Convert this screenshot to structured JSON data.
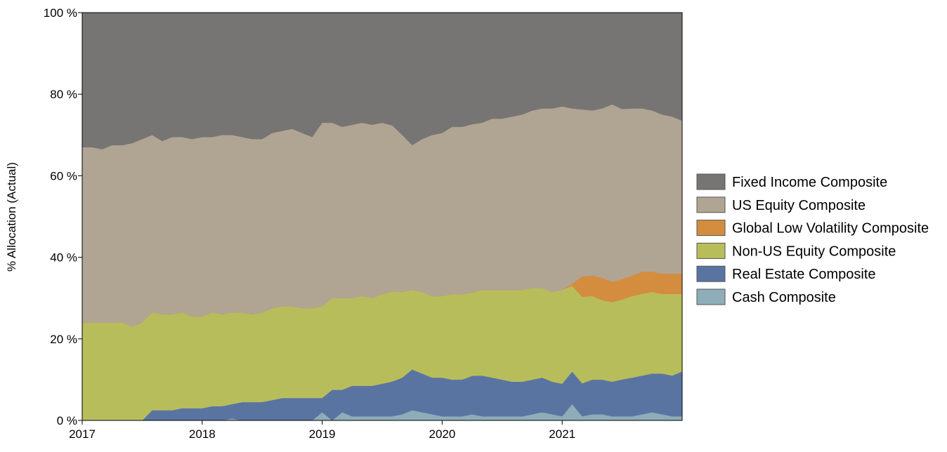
{
  "chart_data": {
    "type": "area",
    "stacked": true,
    "percent": true,
    "title": "",
    "xlabel": "",
    "ylabel": "% Allocation (Actual)",
    "ylim": [
      0,
      100
    ],
    "xlim": [
      2017.0,
      2022.0
    ],
    "x_ticks": [
      2017,
      2018,
      2019,
      2020,
      2021
    ],
    "y_ticks": [
      0,
      20,
      40,
      60,
      80,
      100
    ],
    "y_tick_suffix": " %",
    "grid": false,
    "legend_position": "right",
    "x": [
      2017.0,
      2017.083,
      2017.167,
      2017.25,
      2017.333,
      2017.417,
      2017.5,
      2017.583,
      2017.667,
      2017.75,
      2017.833,
      2017.917,
      2018.0,
      2018.083,
      2018.167,
      2018.25,
      2018.333,
      2018.417,
      2018.5,
      2018.583,
      2018.667,
      2018.75,
      2018.833,
      2018.917,
      2019.0,
      2019.083,
      2019.167,
      2019.25,
      2019.333,
      2019.417,
      2019.5,
      2019.583,
      2019.667,
      2019.75,
      2019.833,
      2019.917,
      2020.0,
      2020.083,
      2020.167,
      2020.25,
      2020.333,
      2020.417,
      2020.5,
      2020.583,
      2020.667,
      2020.75,
      2020.833,
      2020.917,
      2021.0,
      2021.083,
      2021.167,
      2021.25,
      2021.333,
      2021.417,
      2021.5,
      2021.583,
      2021.667,
      2021.75,
      2021.833,
      2021.917,
      2022.0
    ],
    "series": [
      {
        "name": "Cash Composite",
        "color": "#8fadb9",
        "values": [
          0,
          0,
          0,
          0,
          0,
          0,
          0,
          0,
          0,
          0,
          0,
          0,
          0,
          0,
          0,
          0.5,
          0,
          0,
          0,
          0,
          0,
          0,
          0,
          0,
          2,
          0,
          2,
          1,
          1,
          1,
          1,
          1,
          1.5,
          2.5,
          2,
          1.5,
          1,
          1,
          1,
          1.5,
          1,
          1,
          1,
          1,
          1,
          1.5,
          2,
          1.5,
          1,
          4,
          1,
          1.5,
          1.5,
          1,
          1,
          1,
          1.5,
          2,
          1.5,
          1,
          1
        ]
      },
      {
        "name": "Real Estate Composite",
        "color": "#5a74a2",
        "values": [
          0,
          0,
          0,
          0,
          0,
          0,
          0,
          2.5,
          2.5,
          2.5,
          3,
          3,
          3,
          3.5,
          3.5,
          3.5,
          4.5,
          4.5,
          4.5,
          5,
          5.5,
          5.5,
          5.5,
          5.5,
          3.5,
          7.5,
          5.5,
          7.5,
          7.5,
          7.5,
          8,
          8.5,
          9,
          10,
          9.5,
          9,
          9.5,
          9,
          9,
          9.5,
          10,
          9.5,
          9,
          8.5,
          8.5,
          8.5,
          8.5,
          8,
          8,
          8,
          8,
          8.5,
          8.5,
          8.5,
          9,
          9.5,
          9.5,
          9.5,
          10,
          10,
          11
        ]
      },
      {
        "name": "Non-US Equity Composite",
        "color": "#b8bd5c",
        "values": [
          24,
          24,
          24,
          24,
          24,
          23,
          24,
          24,
          23.5,
          23.5,
          23.5,
          22.5,
          22.5,
          23,
          22.5,
          22.5,
          22,
          21.5,
          22,
          22.5,
          22.5,
          22.5,
          22,
          22,
          22.5,
          22.5,
          22.5,
          21.5,
          22,
          21.5,
          22,
          22,
          21,
          19.5,
          20,
          20,
          20,
          21,
          21,
          20.5,
          21,
          21.5,
          22,
          22.5,
          22.5,
          22.5,
          22,
          22,
          23,
          21,
          21,
          20.5,
          19.5,
          19.5,
          19.5,
          20,
          20,
          20,
          19.5,
          20,
          19
        ]
      },
      {
        "name": "Global Low Volatility Composite",
        "color": "#d48c3f",
        "values": [
          0,
          0,
          0,
          0,
          0,
          0,
          0,
          0,
          0,
          0,
          0,
          0,
          0,
          0,
          0,
          0,
          0,
          0,
          0,
          0,
          0,
          0,
          0,
          0,
          0,
          0,
          0,
          0,
          0,
          0,
          0,
          0,
          0,
          0,
          0,
          0,
          0,
          0,
          0,
          0,
          0,
          0,
          0,
          0,
          0,
          0,
          0,
          0,
          0,
          0.5,
          5,
          5,
          5.5,
          5,
          5,
          5,
          5.5,
          5,
          5,
          5,
          5
        ]
      },
      {
        "name": "US Equity Composite",
        "color": "#b0a592",
        "values": [
          43,
          43,
          42.5,
          43.5,
          43.5,
          45,
          45,
          43.5,
          42.5,
          43.5,
          43,
          43.5,
          44,
          43,
          44,
          43.5,
          43,
          43,
          42.5,
          43,
          43,
          43.5,
          43,
          42,
          45,
          43,
          42,
          42.5,
          42.5,
          42.5,
          42,
          40.5,
          38.5,
          35.5,
          37.5,
          39.5,
          40,
          41,
          41,
          41.5,
          41,
          42,
          42,
          42.5,
          43,
          43.5,
          44,
          45,
          45,
          43,
          40.5,
          40.5,
          41.5,
          43.5,
          41.5,
          41,
          40,
          39.5,
          39,
          38.5,
          37.5
        ]
      },
      {
        "name": "Fixed Income Composite",
        "color": "#767573",
        "values": [
          33,
          33,
          33.5,
          32.5,
          32.5,
          32,
          31,
          30,
          31.5,
          30.5,
          30.5,
          31,
          30.5,
          30.5,
          30,
          30,
          30.5,
          31,
          31,
          29.5,
          29,
          28.5,
          29.5,
          30.5,
          27,
          27,
          28,
          27.5,
          27,
          27.5,
          27,
          27.5,
          30,
          32.5,
          31,
          30,
          29.5,
          28,
          28,
          27.5,
          27,
          26,
          26,
          25.5,
          25,
          24,
          23.5,
          23.5,
          23,
          23.5,
          23.5,
          24,
          23.5,
          22.5,
          23.5,
          23.5,
          23.5,
          24,
          25,
          25.5,
          26.5
        ]
      }
    ],
    "legend_order": [
      "Fixed Income Composite",
      "US Equity Composite",
      "Global Low Volatility Composite",
      "Non-US Equity Composite",
      "Real Estate Composite",
      "Cash Composite"
    ]
  }
}
